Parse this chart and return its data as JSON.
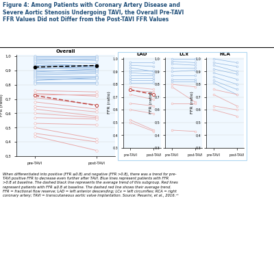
{
  "title": "Figure 4: Among Patients with Coronary Artery Disease and\nSevere Aortic Stenosis Undergoing TAVI, the Overall Pre-TAVI\nFFR Values Did not Differ from the Post-TAVI FFR Values",
  "caption": "When differentiated into positive (FFR ≤0.8) and negative (FFR >0.8), there was a trend for pre-\nTAVI positive FFR to decrease even further after TAVI. Blue lines represent patients with FFR\n>0.8 at baseline. The dashed black line represents the average trend of this subgroup. Red lines\nrepresent patients with FFR ≤0.8 at baseline. The dashed red line shows their average trend.\nFFR = fractional flow reserve; LAD = left anterior descending; LCx = left circumflex; RCA = right\ncoronary artery; TAVI = transcutaneous aortic valve implantation. Source: Pesarini, et al., 2016.¹³",
  "overall_blue_pre": [
    1.0,
    0.99,
    0.98,
    0.97,
    0.96,
    0.95,
    0.94,
    0.93,
    0.92,
    0.91,
    0.9,
    0.89,
    0.88,
    0.87,
    0.86,
    0.85,
    0.84,
    0.83,
    0.82,
    0.81
  ],
  "overall_blue_post": [
    1.0,
    0.99,
    0.97,
    0.98,
    0.95,
    0.93,
    0.94,
    0.92,
    0.91,
    0.93,
    0.9,
    0.91,
    0.89,
    0.88,
    0.86,
    0.85,
    0.84,
    0.85,
    0.82,
    0.81
  ],
  "overall_blue_avg_pre": 0.924,
  "overall_blue_avg_post": 0.935,
  "overall_red_pre": [
    0.73,
    0.76,
    0.74,
    0.71,
    0.68,
    0.65,
    0.63,
    0.6,
    0.57,
    0.53,
    0.5,
    0.46,
    0.44
  ],
  "overall_red_post": [
    0.73,
    0.75,
    0.72,
    0.66,
    0.63,
    0.61,
    0.58,
    0.57,
    0.56,
    0.52,
    0.42,
    0.4,
    0.34
  ],
  "overall_red_avg_pre": 0.725,
  "overall_red_avg_post": 0.655,
  "lad_blue_pre": [
    0.97,
    0.95,
    0.93,
    0.91,
    0.89,
    0.87,
    0.85,
    0.83,
    0.81
  ],
  "lad_blue_post": [
    0.97,
    0.94,
    0.9,
    0.91,
    0.88,
    0.87,
    0.85,
    0.83,
    0.81
  ],
  "lad_red_pre": [
    0.78,
    0.75,
    0.72,
    0.65,
    0.6,
    0.52,
    0.5
  ],
  "lad_red_post": [
    0.76,
    0.74,
    0.68,
    0.63,
    0.57,
    0.44,
    0.43
  ],
  "lad_red_avg_pre": 0.757,
  "lad_red_avg_post": 0.72,
  "lcx_blue_pre": [
    1.0,
    0.98,
    0.96,
    0.93,
    0.9,
    0.87,
    0.84,
    0.82
  ],
  "lcx_blue_post": [
    1.0,
    0.97,
    0.95,
    0.93,
    0.91,
    0.87,
    0.84,
    0.82
  ],
  "lcx_red_pre": [
    0.8,
    0.78,
    0.65,
    0.44
  ],
  "lcx_red_post": [
    0.78,
    0.66,
    0.65,
    0.43
  ],
  "rca_blue_pre": [
    1.0,
    0.97,
    0.95,
    0.92,
    0.89,
    0.86,
    0.83,
    0.81
  ],
  "rca_blue_post": [
    0.97,
    0.94,
    0.9,
    0.88,
    0.84,
    0.8,
    0.76,
    0.72
  ],
  "rca_red_pre": [
    0.76,
    0.72,
    0.63,
    0.6
  ],
  "rca_red_post": [
    0.72,
    0.63,
    0.6,
    0.55
  ],
  "blue_color": "#4472C4",
  "red_color": "#C0504D",
  "blue_light": "#9DC3E6",
  "red_light": "#F4B8B8",
  "background": "#FFFFFF",
  "panel_bg": "#EBF5FB"
}
